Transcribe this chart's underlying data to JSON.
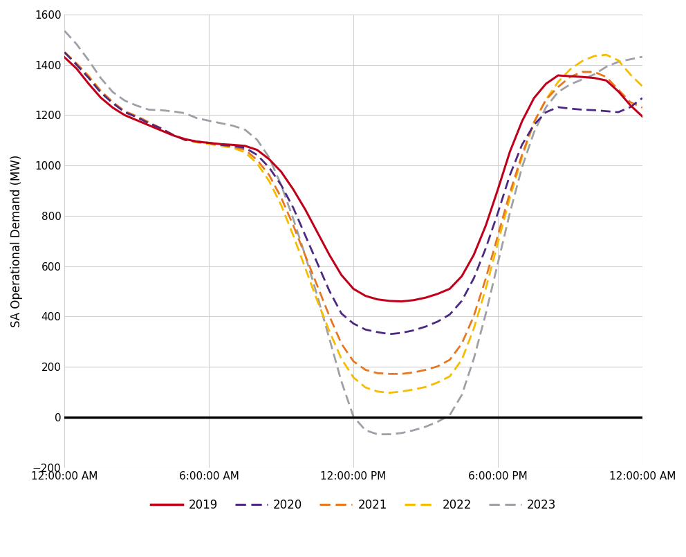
{
  "title": "",
  "ylabel": "SA Operational Demand (MW)",
  "xlabel": "",
  "ylim": [
    -200,
    1600
  ],
  "yticks": [
    -200,
    0,
    200,
    400,
    600,
    800,
    1000,
    1200,
    1400,
    1600
  ],
  "xtick_labels": [
    "12:00:00 AM",
    "6:00:00 AM",
    "12:00:00 PM",
    "6:00:00 PM",
    "12:00:00 AM"
  ],
  "xtick_positions": [
    0,
    6,
    12,
    18,
    24
  ],
  "background_color": "#ffffff",
  "grid_color": "#d0d0d0",
  "zero_line_color": "#000000",
  "series": {
    "2019": {
      "color": "#c0001a",
      "linestyle": "solid",
      "linewidth": 2.2,
      "zorder": 5
    },
    "2020": {
      "color": "#4b2882",
      "linestyle": "dashed",
      "linewidth": 2.0,
      "zorder": 4
    },
    "2021": {
      "color": "#e87722",
      "linestyle": "dashed",
      "linewidth": 2.0,
      "zorder": 3
    },
    "2022": {
      "color": "#f5bc00",
      "linestyle": "dashed",
      "linewidth": 2.0,
      "zorder": 2
    },
    "2023": {
      "color": "#9ea0a8",
      "linestyle": "dashed",
      "linewidth": 2.0,
      "zorder": 1
    }
  },
  "hours": [
    0,
    0.5,
    1,
    1.5,
    2,
    2.5,
    3,
    3.5,
    4,
    4.5,
    5,
    5.5,
    6,
    6.5,
    7,
    7.5,
    8,
    8.5,
    9,
    9.5,
    10,
    10.5,
    11,
    11.5,
    12,
    12.5,
    13,
    13.5,
    14,
    14.5,
    15,
    15.5,
    16,
    16.5,
    17,
    17.5,
    18,
    18.5,
    19,
    19.5,
    20,
    20.5,
    21,
    21.5,
    22,
    22.5,
    23,
    23.5,
    24
  ],
  "data_2019": [
    1430,
    1385,
    1325,
    1270,
    1230,
    1200,
    1180,
    1160,
    1140,
    1120,
    1105,
    1095,
    1090,
    1085,
    1082,
    1078,
    1062,
    1025,
    975,
    905,
    825,
    735,
    645,
    565,
    510,
    482,
    468,
    462,
    460,
    465,
    475,
    490,
    510,
    560,
    645,
    762,
    905,
    1055,
    1175,
    1268,
    1325,
    1358,
    1355,
    1352,
    1348,
    1338,
    1295,
    1240,
    1195
  ],
  "data_2020": [
    1450,
    1400,
    1348,
    1290,
    1248,
    1212,
    1192,
    1168,
    1148,
    1122,
    1102,
    1095,
    1090,
    1082,
    1078,
    1070,
    1042,
    992,
    922,
    832,
    722,
    612,
    502,
    412,
    372,
    348,
    338,
    330,
    335,
    345,
    360,
    380,
    408,
    462,
    552,
    672,
    812,
    962,
    1082,
    1162,
    1212,
    1232,
    1226,
    1222,
    1220,
    1216,
    1212,
    1232,
    1268
  ],
  "data_2021": [
    1450,
    1405,
    1355,
    1297,
    1252,
    1216,
    1196,
    1172,
    1148,
    1122,
    1102,
    1095,
    1090,
    1082,
    1075,
    1062,
    1022,
    962,
    872,
    762,
    642,
    522,
    402,
    292,
    222,
    188,
    175,
    172,
    172,
    178,
    188,
    202,
    228,
    292,
    402,
    552,
    722,
    892,
    1042,
    1172,
    1262,
    1312,
    1352,
    1372,
    1372,
    1352,
    1302,
    1252,
    1230
  ],
  "data_2022": [
    1450,
    1405,
    1355,
    1297,
    1252,
    1212,
    1192,
    1168,
    1148,
    1122,
    1102,
    1092,
    1085,
    1078,
    1070,
    1052,
    1008,
    938,
    842,
    722,
    592,
    462,
    342,
    232,
    158,
    118,
    102,
    97,
    102,
    110,
    120,
    138,
    162,
    228,
    352,
    512,
    692,
    872,
    1032,
    1172,
    1262,
    1332,
    1382,
    1415,
    1435,
    1440,
    1418,
    1362,
    1315
  ],
  "data_2023": [
    1535,
    1482,
    1418,
    1348,
    1292,
    1258,
    1238,
    1222,
    1220,
    1215,
    1208,
    1188,
    1178,
    1168,
    1158,
    1142,
    1102,
    1032,
    922,
    788,
    642,
    482,
    312,
    142,
    2,
    -52,
    -68,
    -68,
    -63,
    -52,
    -38,
    -18,
    8,
    88,
    232,
    412,
    612,
    812,
    992,
    1132,
    1232,
    1292,
    1322,
    1342,
    1362,
    1392,
    1412,
    1422,
    1432
  ]
}
